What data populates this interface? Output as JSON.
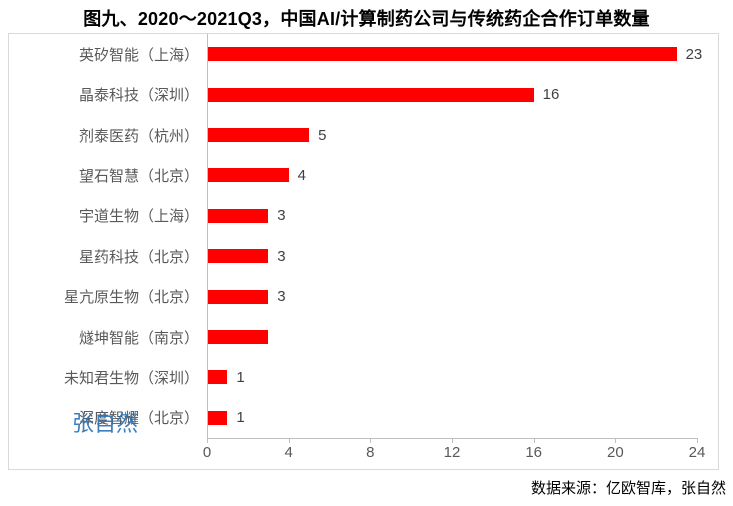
{
  "chart_data": {
    "type": "bar",
    "orientation": "horizontal",
    "title": "图九、2020～2021Q3，中国AI/计算制药公司与传统药企合作订单数量",
    "categories": [
      "英矽智能（上海）",
      "晶泰科技（深圳）",
      "剂泰医药（杭州）",
      "望石智慧（北京）",
      "宇道生物（上海）",
      "星药科技（北京）",
      "星亢原生物（北京）",
      "燧坤智能（南京）",
      "未知君生物（深圳）",
      "深度智耀（北京）"
    ],
    "values": [
      23,
      16,
      5,
      4,
      3,
      3,
      3,
      3,
      1,
      1
    ],
    "data_labels": [
      "23",
      "16",
      "5",
      "4",
      "3",
      "3",
      "3",
      "",
      "1",
      "1"
    ],
    "xlabel": "",
    "ylabel": "",
    "xlim": [
      0,
      24
    ],
    "x_ticks": [
      0,
      4,
      8,
      12,
      16,
      20,
      24
    ],
    "grid": false,
    "legend": false,
    "bar_color": "#FF0000"
  },
  "watermark": "张自然",
  "footer": "数据来源：亿欧智库，张自然",
  "colors": {
    "bar": "#FF0000",
    "axis_line": "#BFBFBF",
    "frame_border": "#D9D9D9",
    "tick_label": "#595959",
    "category_label": "#595959",
    "value_label": "#404040",
    "title": "#000000",
    "watermark": "#2E75B6",
    "footer": "#000000"
  }
}
